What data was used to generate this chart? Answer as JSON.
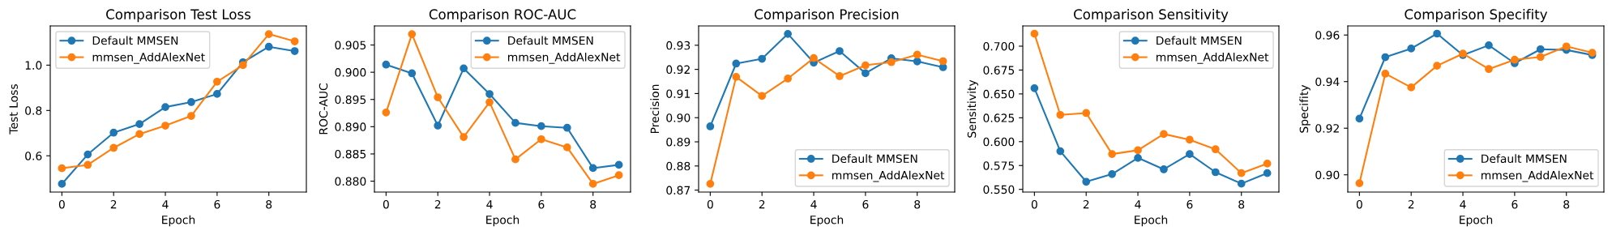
{
  "chart_data": [
    {
      "type": "line",
      "title": "Comparison Test Loss",
      "xlabel": "Epoch",
      "ylabel": "Test Loss",
      "x": [
        0,
        1,
        2,
        3,
        4,
        5,
        6,
        7,
        8,
        9
      ],
      "xlim": [
        -0.45,
        9.45
      ],
      "xticks": [
        0,
        2,
        4,
        6,
        8
      ],
      "ylim": [
        0.44,
        1.173
      ],
      "yticks": [
        0.6,
        0.8,
        {
          "value": 1,
          "label": "1.0"
        }
      ],
      "marker": "circle",
      "line_style": "solid",
      "grid": false,
      "legend": "top left",
      "series": [
        {
          "name": "Default MMSEN",
          "color": "#1f77b4",
          "values": [
            0.476,
            0.606,
            0.702,
            0.74,
            0.815,
            0.837,
            0.873,
            1.013,
            1.081,
            1.062
          ]
        },
        {
          "name": "mmsen_AddAlexNet",
          "color": "#ff7f0e",
          "values": [
            0.545,
            0.56,
            0.635,
            0.696,
            0.733,
            0.776,
            0.927,
            1.0,
            1.137,
            1.105
          ]
        }
      ]
    },
    {
      "type": "line",
      "title": "Comparison ROC-AUC",
      "xlabel": "Epoch",
      "ylabel": "ROC-AUC",
      "x": [
        0,
        1,
        2,
        3,
        4,
        5,
        6,
        7,
        8,
        9
      ],
      "xlim": [
        -0.45,
        9.45
      ],
      "xticks": [
        0,
        2,
        4,
        6,
        8
      ],
      "ylim": [
        0.878,
        0.9085
      ],
      "yticks": [
        {
          "value": 0.88,
          "label": "0.880"
        },
        0.885,
        {
          "value": 0.89,
          "label": "0.890"
        },
        0.895,
        {
          "value": 0.9,
          "label": "0.900"
        },
        0.905
      ],
      "marker": "circle",
      "line_style": "solid",
      "grid": false,
      "legend": "top right",
      "series": [
        {
          "name": "Default MMSEN",
          "color": "#1f77b4",
          "values": [
            0.9014,
            0.8998,
            0.8902,
            0.9007,
            0.896,
            0.8907,
            0.8901,
            0.8898,
            0.8824,
            0.883
          ]
        },
        {
          "name": "mmsen_AddAlexNet",
          "color": "#ff7f0e",
          "values": [
            0.8926,
            0.907,
            0.8954,
            0.8881,
            0.8945,
            0.884,
            0.8877,
            0.8862,
            0.8795,
            0.8811
          ]
        }
      ]
    },
    {
      "type": "line",
      "title": "Comparison Precision",
      "xlabel": "Epoch",
      "ylabel": "Precision",
      "x": [
        0,
        1,
        2,
        3,
        4,
        5,
        6,
        7,
        8,
        9
      ],
      "xlim": [
        -0.45,
        9.45
      ],
      "xticks": [
        0,
        2,
        4,
        6,
        8
      ],
      "ylim": [
        0.8692,
        0.938
      ],
      "yticks": [
        0.87,
        0.88,
        0.89,
        {
          "value": 0.9,
          "label": "0.90"
        },
        0.91,
        0.92,
        0.93
      ],
      "marker": "circle",
      "line_style": "solid",
      "grid": false,
      "legend": "bottom right",
      "series": [
        {
          "name": "Default MMSEN",
          "color": "#1f77b4",
          "values": [
            0.8964,
            0.9224,
            0.9244,
            0.9347,
            0.9228,
            0.9276,
            0.9184,
            0.9246,
            0.9233,
            0.9209
          ]
        },
        {
          "name": "mmsen_AddAlexNet",
          "color": "#ff7f0e",
          "values": [
            0.8726,
            0.9169,
            0.909,
            0.9162,
            0.9247,
            0.9172,
            0.9217,
            0.923,
            0.9261,
            0.9234
          ]
        }
      ]
    },
    {
      "type": "line",
      "title": "Comparison Sensitivity",
      "xlabel": "Epoch",
      "ylabel": "Sensitivity",
      "x": [
        0,
        1,
        2,
        3,
        4,
        5,
        6,
        7,
        8,
        9
      ],
      "xlim": [
        -0.45,
        9.45
      ],
      "xticks": [
        0,
        2,
        4,
        6,
        8
      ],
      "ylim": [
        0.5472,
        0.7212
      ],
      "yticks": [
        {
          "value": 0.55,
          "label": "0.550"
        },
        0.575,
        {
          "value": 0.6,
          "label": "0.600"
        },
        0.625,
        {
          "value": 0.65,
          "label": "0.650"
        },
        0.675,
        {
          "value": 0.7,
          "label": "0.700"
        }
      ],
      "marker": "circle",
      "line_style": "solid",
      "grid": false,
      "legend": "top right",
      "series": [
        {
          "name": "Default MMSEN",
          "color": "#1f77b4",
          "values": [
            0.656,
            0.59,
            0.558,
            0.566,
            0.583,
            0.571,
            0.587,
            0.568,
            0.556,
            0.567
          ]
        },
        {
          "name": "mmsen_AddAlexNet",
          "color": "#ff7f0e",
          "values": [
            0.713,
            0.628,
            0.63,
            0.587,
            0.591,
            0.608,
            0.602,
            0.592,
            0.567,
            0.577
          ]
        }
      ]
    },
    {
      "type": "line",
      "title": "Comparison Specifity",
      "xlabel": "Epoch",
      "ylabel": "Specifity",
      "x": [
        0,
        1,
        2,
        3,
        4,
        5,
        6,
        7,
        8,
        9
      ],
      "xlim": [
        -0.45,
        9.45
      ],
      "xticks": [
        0,
        2,
        4,
        6,
        8
      ],
      "ylim": [
        0.8926,
        0.9639
      ],
      "yticks": [
        {
          "value": 0.9,
          "label": "0.90"
        },
        0.92,
        0.94,
        0.96
      ],
      "marker": "circle",
      "line_style": "solid",
      "grid": false,
      "legend": "bottom right",
      "series": [
        {
          "name": "Default MMSEN",
          "color": "#1f77b4",
          "values": [
            0.9241,
            0.9505,
            0.9542,
            0.9606,
            0.9514,
            0.9556,
            0.9479,
            0.9539,
            0.9536,
            0.9514
          ]
        },
        {
          "name": "mmsen_AddAlexNet",
          "color": "#ff7f0e",
          "values": [
            0.8964,
            0.9434,
            0.9375,
            0.9468,
            0.952,
            0.9454,
            0.9494,
            0.9506,
            0.9551,
            0.9524
          ]
        }
      ]
    }
  ]
}
